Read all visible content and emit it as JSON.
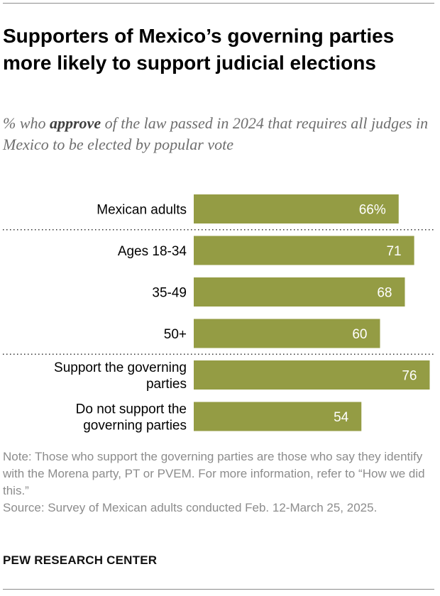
{
  "header": {
    "title": "Supporters of Mexico’s governing parties more likely to support judicial elections",
    "subtitle_pre": "% who ",
    "subtitle_emph": "approve",
    "subtitle_post": " of the law passed in 2024 that requires all judges in Mexico to be elected by popular vote"
  },
  "chart_data": {
    "type": "bar",
    "orientation": "horizontal",
    "title": "Supporters of Mexico’s governing parties more likely to support judicial elections",
    "subtitle": "% who approve of the law passed in 2024 that requires all judges in Mexico to be elected by popular vote",
    "xlim": [
      0,
      100
    ],
    "color": "#949c44",
    "label_color": "#ffffff",
    "categories": [
      [
        "Mexican adults"
      ],
      [
        "Ages 18-34"
      ],
      [
        "35-49"
      ],
      [
        "50+"
      ],
      [
        "Support the governing",
        "parties"
      ],
      [
        "Do not support the",
        "governing parties"
      ]
    ],
    "values": [
      66,
      71,
      68,
      60,
      76,
      54
    ],
    "value_labels": [
      "66%",
      "71",
      "68",
      "60",
      "76",
      "54"
    ],
    "dividers_after": [
      0,
      3
    ]
  },
  "footer": {
    "note": "Note: Those who support the governing parties are those who say they identify with the Morena party, PT or PVEM. For more information, refer to “How we did this.”",
    "source": "Source: Survey of Mexican adults conducted Feb. 12-March 25, 2025.",
    "brand": "PEW RESEARCH CENTER"
  }
}
